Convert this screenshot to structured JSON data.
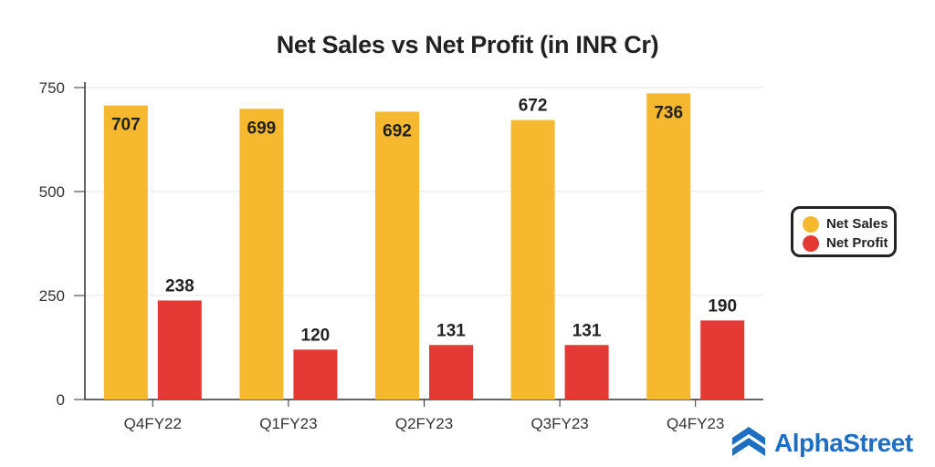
{
  "colors": {
    "net_sales": "#F5B82E",
    "net_profit": "#E53935",
    "brand": "#1E6FC3",
    "grid": "#E5E5E5",
    "axis": "#333333"
  },
  "legend": {
    "items": [
      {
        "label": "Net Sales",
        "color": "#F5B82E"
      },
      {
        "label": "Net Profit",
        "color": "#E53935"
      }
    ]
  },
  "brand": {
    "name": "AlphaStreet",
    "icon": "alphastreet-logo-icon"
  },
  "chart_data": {
    "type": "bar",
    "title": "Net Sales vs Net Profit (in INR Cr)",
    "xlabel": "",
    "ylabel": "",
    "categories": [
      "Q4FY22",
      "Q1FY23",
      "Q2FY23",
      "Q3FY23",
      "Q4FY23"
    ],
    "series": [
      {
        "name": "Net Sales",
        "values": [
          707,
          699,
          692,
          672,
          736
        ]
      },
      {
        "name": "Net Profit",
        "values": [
          238,
          120,
          131,
          131,
          190
        ]
      }
    ],
    "ylim": [
      0,
      750
    ],
    "yticks": [
      "0",
      "250",
      "500",
      "750"
    ],
    "grid": true,
    "legend_position": "right"
  }
}
